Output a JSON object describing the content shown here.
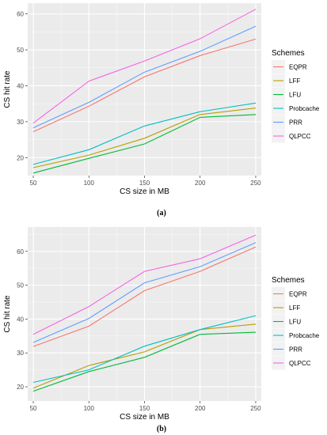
{
  "chart_data": [
    {
      "type": "line",
      "caption": "(a)",
      "xlabel": "CS size in MB",
      "ylabel": "CS hit rate",
      "x": [
        50,
        100,
        150,
        200,
        250
      ],
      "x_ticks": [
        "50",
        "100",
        "150",
        "200",
        "250"
      ],
      "y_ticks": [
        20,
        30,
        40,
        50,
        60
      ],
      "xlim": [
        45,
        255
      ],
      "ylim": [
        15.0,
        63.0
      ],
      "grid": true,
      "legend_title": "Schemes",
      "legend_position": "right",
      "series": [
        {
          "name": "EQPR",
          "color": "#F8766D",
          "values": [
            27.2,
            34.3,
            42.5,
            48.4,
            53.0
          ]
        },
        {
          "name": "LFF",
          "color": "#B79F00",
          "values": [
            17.2,
            20.7,
            25.4,
            32.0,
            33.8
          ]
        },
        {
          "name": "LFU",
          "color": "#00BA38",
          "values": [
            15.7,
            19.8,
            23.8,
            31.2,
            32.0
          ]
        },
        {
          "name": "Probcache",
          "color": "#00BFC4",
          "values": [
            18.1,
            22.2,
            28.8,
            32.8,
            35.2
          ]
        },
        {
          "name": "PRR",
          "color": "#619CFF",
          "values": [
            28.3,
            35.4,
            43.8,
            49.6,
            56.6
          ]
        },
        {
          "name": "QLPCC",
          "color": "#F564E3",
          "values": [
            29.6,
            41.3,
            46.9,
            53.1,
            61.3
          ]
        }
      ]
    },
    {
      "type": "line",
      "caption": "(b)",
      "xlabel": "CS size in MB",
      "ylabel": "CS hit rate",
      "x": [
        50,
        100,
        150,
        200,
        250
      ],
      "x_ticks": [
        "50",
        "100",
        "150",
        "200",
        "250"
      ],
      "y_ticks": [
        20,
        30,
        40,
        50,
        60
      ],
      "xlim": [
        45,
        255
      ],
      "ylim": [
        15.8,
        67.2
      ],
      "grid": true,
      "legend_title": "Schemes",
      "legend_position": "right",
      "series": [
        {
          "name": "EQPR",
          "color": "#F8766D",
          "values": [
            31.9,
            37.9,
            48.4,
            54.1,
            61.3
          ]
        },
        {
          "name": "LFF",
          "color": "#B79F00",
          "values": [
            19.6,
            26.3,
            30.3,
            36.9,
            38.5
          ]
        },
        {
          "name": "LFU",
          "color": "#00BA38",
          "values": [
            18.7,
            24.5,
            28.7,
            35.5,
            36.1
          ]
        },
        {
          "name": "Probcache",
          "color": "#00BFC4",
          "values": [
            21.3,
            25.0,
            32.0,
            36.9,
            41.0
          ]
        },
        {
          "name": "PRR",
          "color": "#619CFF",
          "values": [
            33.1,
            40.2,
            50.7,
            55.5,
            62.6
          ]
        },
        {
          "name": "QLPCC",
          "color": "#F564E3",
          "values": [
            35.5,
            43.7,
            54.1,
            57.8,
            64.8
          ]
        }
      ]
    }
  ]
}
